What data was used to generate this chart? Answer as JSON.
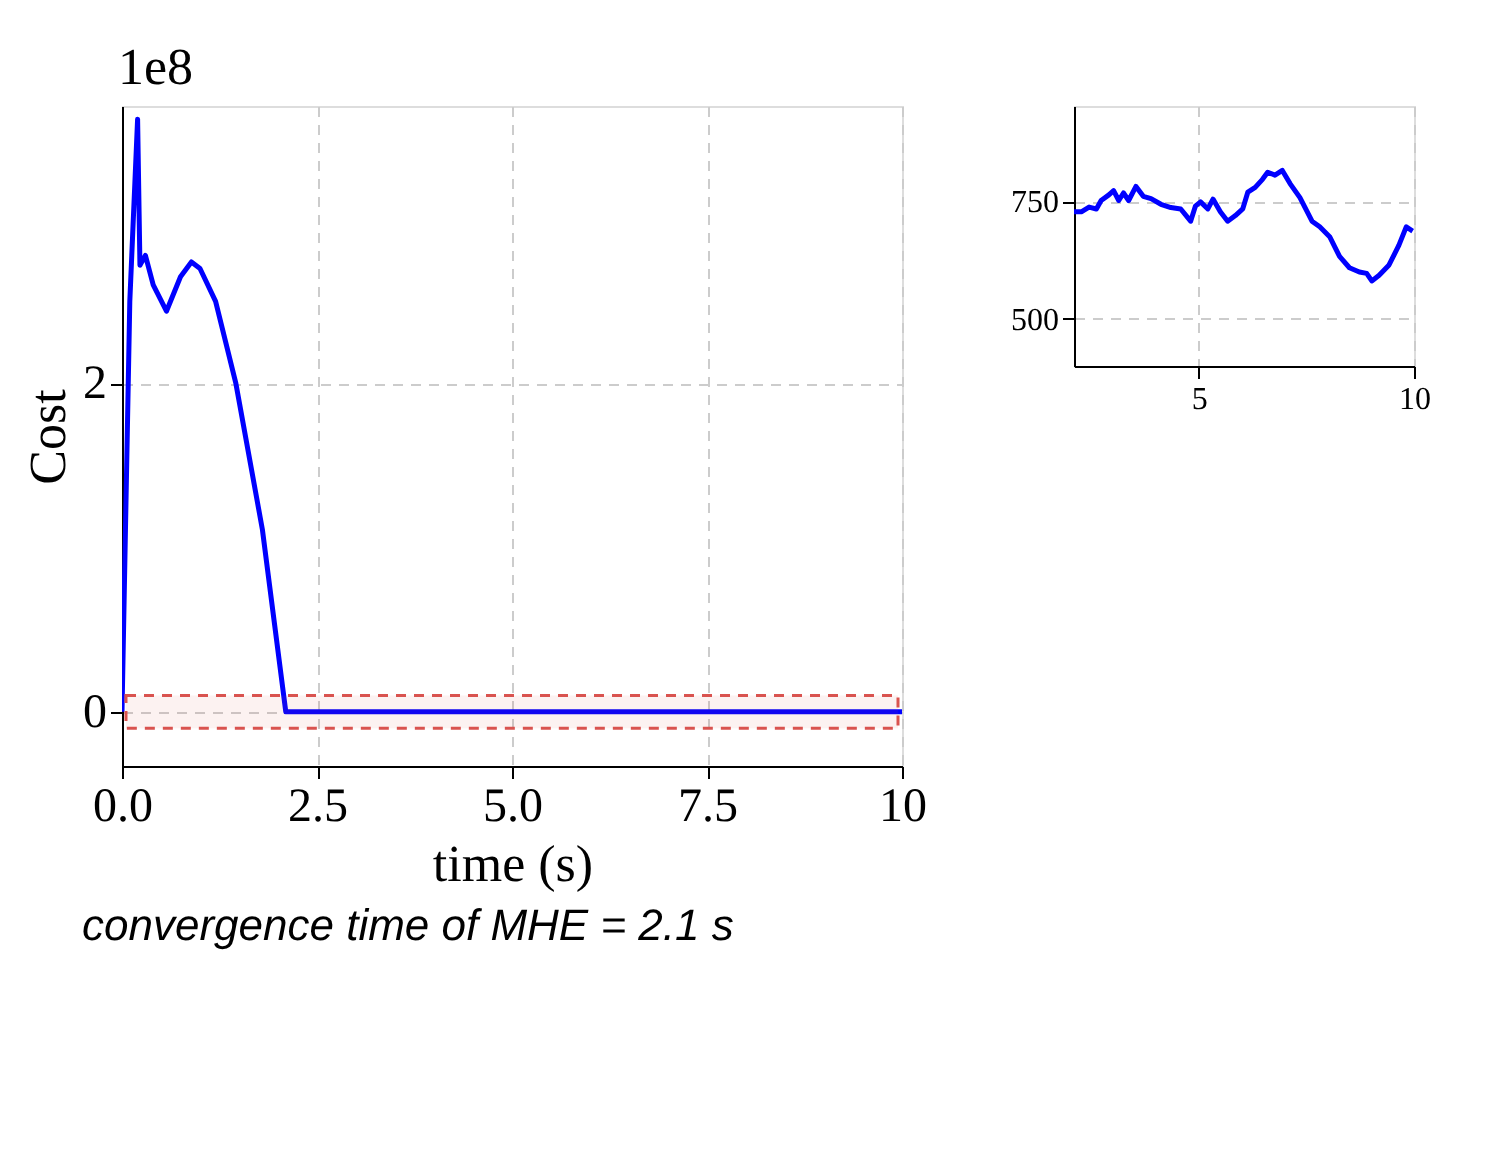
{
  "chart_data": [
    {
      "type": "line",
      "xlabel": "time (s)",
      "ylabel": "Cost",
      "x": [
        0,
        0.1,
        0.2,
        0.23,
        0.3,
        0.4,
        0.57,
        0.75,
        0.89,
        1.0,
        1.2,
        1.46,
        1.8,
        2.1,
        2.5,
        5,
        7.5,
        10
      ],
      "series": [
        {
          "color": "#0000ff",
          "values": [
            0,
            2.5,
            3.61,
            2.72,
            2.78,
            2.6,
            2.44,
            2.65,
            2.74,
            2.7,
            2.5,
            2.0,
            1.11,
            0,
            0,
            0,
            0,
            0
          ]
        }
      ],
      "xlim": [
        0,
        10
      ],
      "ylim": [
        -0.33,
        3.69
      ],
      "xticks": [
        {
          "value": 0,
          "label": "0.0"
        },
        {
          "value": 2.5,
          "label": "2.5"
        },
        {
          "value": 5,
          "label": "5.0"
        },
        {
          "value": 7.5,
          "label": "7.5"
        },
        10
      ],
      "yticks": [
        0,
        2
      ],
      "grid": true,
      "bands": [
        {
          "axis": "y",
          "from": -0.1,
          "to": 0.1,
          "color": "#d9534f"
        }
      ],
      "annotations": [
        "1e8",
        "convergence time of MHE = 2.1 s"
      ]
    },
    {
      "type": "line",
      "x": [
        2.1,
        2.27,
        2.45,
        2.62,
        2.73,
        2.91,
        3.02,
        3.14,
        3.25,
        3.37,
        3.54,
        3.71,
        3.89,
        4.12,
        4.35,
        4.58,
        4.81,
        4.92,
        5.04,
        5.21,
        5.33,
        5.5,
        5.67,
        5.85,
        6.02,
        6.14,
        6.31,
        6.48,
        6.6,
        6.77,
        6.94,
        7.12,
        7.35,
        7.63,
        7.81,
        8.04,
        8.27,
        8.5,
        8.73,
        8.9,
        9.02,
        9.19,
        9.42,
        9.65,
        9.82,
        9.97
      ],
      "series": [
        {
          "color": "#0000ff",
          "values": [
            728,
            728,
            738,
            734,
            752,
            764,
            773,
            752,
            768,
            752,
            782,
            761,
            756,
            744,
            737,
            734,
            708,
            740,
            749,
            734,
            755,
            728,
            708,
            720,
            734,
            770,
            780,
            797,
            812,
            806,
            816,
            788,
            758,
            708,
            696,
            675,
            633,
            609,
            600,
            597,
            581,
            593,
            615,
            657,
            696,
            687
          ]
        }
      ],
      "xlim": [
        2.1,
        10
      ],
      "ylim": [
        400,
        953
      ],
      "xticks": [
        5,
        10
      ],
      "yticks": [
        500,
        750
      ],
      "grid": true
    }
  ]
}
